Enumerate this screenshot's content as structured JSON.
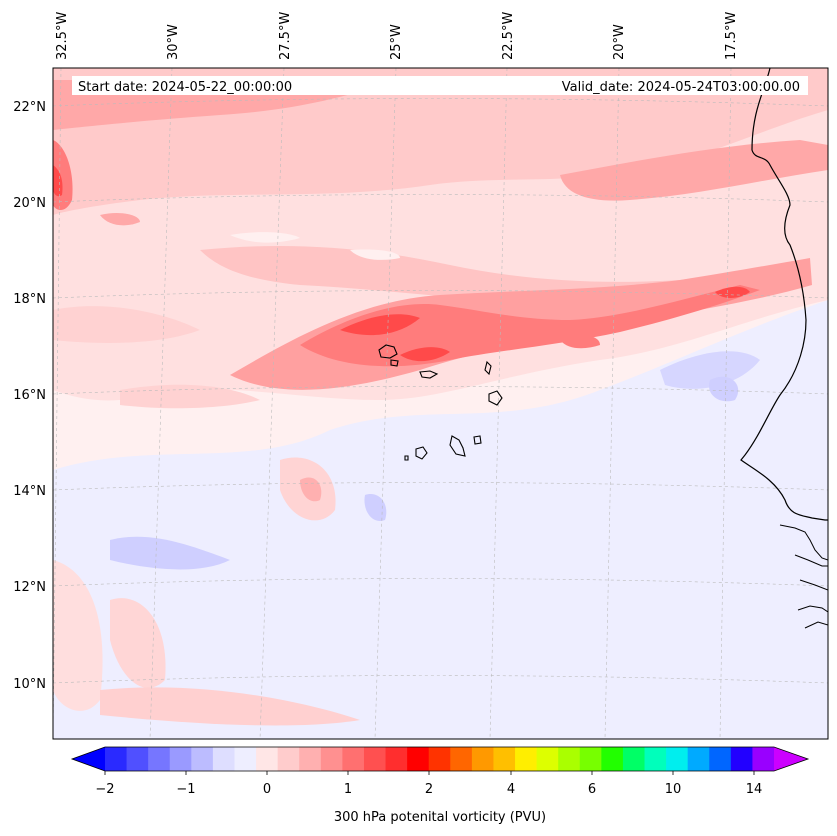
{
  "header": {
    "start_date": "Start date: 2024-05-22_00:00:00",
    "valid_date": "Valid_date: 2024-05-24T03:00:00.00"
  },
  "axes": {
    "longitude_labels": [
      "32.5°W",
      "30°W",
      "27.5°W",
      "25°W",
      "22.5°W",
      "20°W",
      "17.5°W"
    ],
    "latitude_labels": [
      "22°N",
      "20°N",
      "18°N",
      "16°N",
      "14°N",
      "12°N",
      "10°N"
    ]
  },
  "colorbar": {
    "label": "300 hPa potenital vorticity (PVU)",
    "tick_labels": [
      "−2",
      "−1",
      "0",
      "1",
      "2",
      "4",
      "6",
      "10",
      "14"
    ],
    "colors": [
      "#0000ff",
      "#2a2aff",
      "#5050ff",
      "#7676ff",
      "#9a9aff",
      "#bcbcff",
      "#dedeff",
      "#eeeeff",
      "#ffe6e6",
      "#ffcccc",
      "#ffb0b0",
      "#ff9090",
      "#ff7070",
      "#ff5050",
      "#ff2e2e",
      "#ff0000",
      "#ff3300",
      "#ff6600",
      "#ff9900",
      "#ffbf00",
      "#ffee00",
      "#ddff00",
      "#aaff00",
      "#77ff00",
      "#22ff00",
      "#00ff66",
      "#00ffbb",
      "#00eeee",
      "#00aaff",
      "#0066ff",
      "#2200ff",
      "#9900ff",
      "#cc00ff"
    ]
  },
  "colors": {
    "pv_neg_weak": "#eeeeff",
    "pv_neg": "#cfcfff",
    "pv_pos_weak": "#ffe4e4",
    "pv_pos": "#ffc8c8",
    "pv_mid": "#ffa4a4",
    "pv_strong": "#ff7c7c",
    "pv_peak": "#ff4a4a"
  }
}
